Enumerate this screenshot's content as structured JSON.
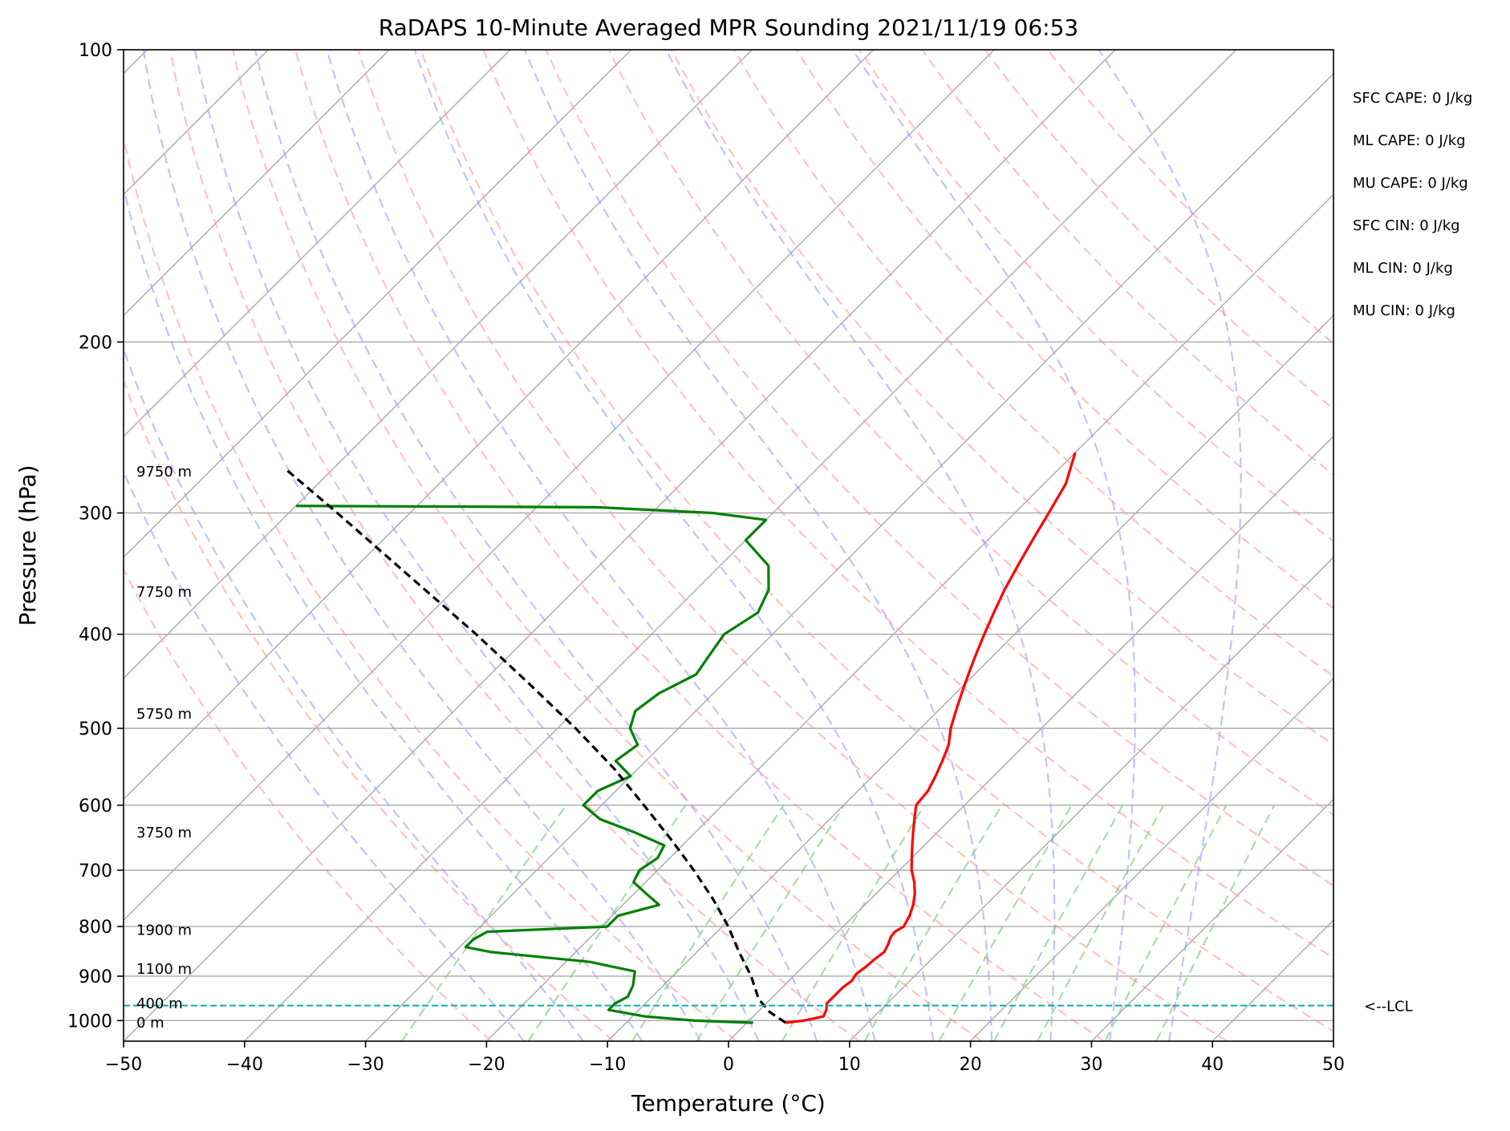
{
  "chart_data": {
    "type": "skew-t log-p sounding",
    "title": "RaDAPS 10-Minute Averaged MPR Sounding 2021/11/19 06:53",
    "xlabel": "Temperature (°C)",
    "ylabel": "Pressure (hPa)",
    "xlim": [
      -50,
      50
    ],
    "ylim": [
      1050,
      100
    ],
    "y_scale": "log",
    "x_ticks": [
      -50,
      -40,
      -30,
      -20,
      -10,
      0,
      10,
      20,
      30,
      40,
      50
    ],
    "x_tick_labels": [
      "−50",
      "−40",
      "−30",
      "−20",
      "−10",
      "0",
      "10",
      "20",
      "30",
      "40",
      "50"
    ],
    "y_ticks": [
      1000,
      900,
      800,
      700,
      600,
      500,
      400,
      300,
      200,
      100
    ],
    "y_tick_labels": [
      "1000",
      "900",
      "800",
      "700",
      "600",
      "500",
      "400",
      "300",
      "200",
      "100"
    ],
    "grid": true,
    "series": [
      {
        "role": "temperature",
        "color": "#ff0000",
        "pressure": [
          1005,
          1000,
          990,
          975,
          960,
          945,
          925,
          910,
          895,
          880,
          865,
          850,
          835,
          820,
          810,
          800,
          780,
          760,
          740,
          720,
          700,
          680,
          660,
          640,
          620,
          600,
          580,
          560,
          540,
          520,
          500,
          480,
          460,
          440,
          420,
          400,
          380,
          360,
          340,
          320,
          300,
          280,
          260
        ],
        "values": [
          3.2,
          4.5,
          5.8,
          5.5,
          5.0,
          5.0,
          5.0,
          5.2,
          5.0,
          5.2,
          5.3,
          5.5,
          5.2,
          4.8,
          4.7,
          5.0,
          4.6,
          4.0,
          3.2,
          2.2,
          1.0,
          0.0,
          -1.0,
          -2.0,
          -3.0,
          -4.0,
          -4.2,
          -4.8,
          -5.5,
          -6.3,
          -7.5,
          -8.5,
          -9.5,
          -10.5,
          -11.5,
          -12.5,
          -13.5,
          -14.5,
          -15.4,
          -16.3,
          -17.2,
          -18.2,
          -20.0
        ]
      },
      {
        "role": "dewpoint",
        "color": "#008000",
        "pressure": [
          1005,
          1000,
          990,
          975,
          960,
          945,
          920,
          890,
          870,
          850,
          840,
          825,
          810,
          800,
          780,
          760,
          740,
          720,
          700,
          680,
          660,
          640,
          620,
          600,
          580,
          560,
          540,
          520,
          500,
          480,
          460,
          440,
          420,
          400,
          380,
          360,
          340,
          320,
          305,
          300,
          296,
          295
        ],
        "values": [
          0.5,
          -4.5,
          -9.0,
          -12.5,
          -12.5,
          -12.0,
          -12.5,
          -13.5,
          -18.0,
          -27.0,
          -29.5,
          -29.5,
          -29.0,
          -19.5,
          -19.5,
          -17.0,
          -19.0,
          -21.0,
          -21.5,
          -21.0,
          -21.5,
          -25.0,
          -29.0,
          -31.5,
          -31.5,
          -30.0,
          -32.5,
          -32.0,
          -34.0,
          -35.0,
          -34.5,
          -33.0,
          -33.5,
          -34.0,
          -33.0,
          -34.0,
          -36.0,
          -40.0,
          -40.0,
          -45.0,
          -55.0,
          -80.0
        ]
      },
      {
        "role": "parcel profile",
        "color": "#000000",
        "style": "dashed",
        "pressure": [
          1005,
          980,
          965,
          950,
          900,
          850,
          800,
          750,
          700,
          650,
          600,
          550,
          500,
          450,
          400,
          350,
          300,
          270
        ],
        "values": [
          3.2,
          1.0,
          0.0,
          -1.0,
          -3.5,
          -6.5,
          -9.5,
          -13.0,
          -17.0,
          -21.5,
          -26.5,
          -32.0,
          -38.5,
          -46.0,
          -54.5,
          -64.5,
          -76.0,
          -84.0
        ]
      }
    ],
    "lcl": {
      "pressure": 965,
      "label": "<--LCL",
      "color": "#00b0b0"
    },
    "height_labels": [
      {
        "pressure": 1005,
        "label": "0 m"
      },
      {
        "pressure": 960,
        "label": "400 m"
      },
      {
        "pressure": 885,
        "label": "1100 m"
      },
      {
        "pressure": 807,
        "label": "1900 m"
      },
      {
        "pressure": 640,
        "label": "3750 m"
      },
      {
        "pressure": 483,
        "label": "5750 m"
      },
      {
        "pressure": 362,
        "label": "7750 m"
      },
      {
        "pressure": 272,
        "label": "9750 m"
      }
    ],
    "indices": [
      "SFC CAPE: 0 J/kg",
      "ML CAPE: 0 J/kg",
      "MU CAPE: 0 J/kg",
      "SFC CIN: 0 J/kg",
      "ML CIN: 0 J/kg",
      "MU CIN: 0 J/kg"
    ],
    "background_lines": {
      "isotherm_color": "#aaaaaa",
      "dry_adiabat_color": "#ff9999",
      "moist_adiabat_color": "#9999ff",
      "mixing_ratio_color": "#88cc88",
      "isotherms": [
        -150,
        -140,
        -130,
        -120,
        -110,
        -100,
        -90,
        -80,
        -70,
        -60,
        -50,
        -40,
        -30,
        -20,
        -10,
        0,
        10,
        20,
        30,
        40,
        50
      ],
      "dry_adiabats_theta_K": [
        250,
        260,
        270,
        280,
        290,
        300,
        310,
        320,
        330,
        340,
        350,
        360,
        370,
        380,
        390,
        400,
        410,
        420
      ],
      "moist_adiabats_t0_C": [
        -20,
        -15,
        -10,
        -5,
        0,
        5,
        10,
        15,
        20,
        25,
        30,
        35
      ],
      "mixing_ratios_gkg": [
        0.4,
        1,
        2,
        3,
        5,
        8,
        12,
        16,
        20,
        28,
        36
      ]
    }
  }
}
